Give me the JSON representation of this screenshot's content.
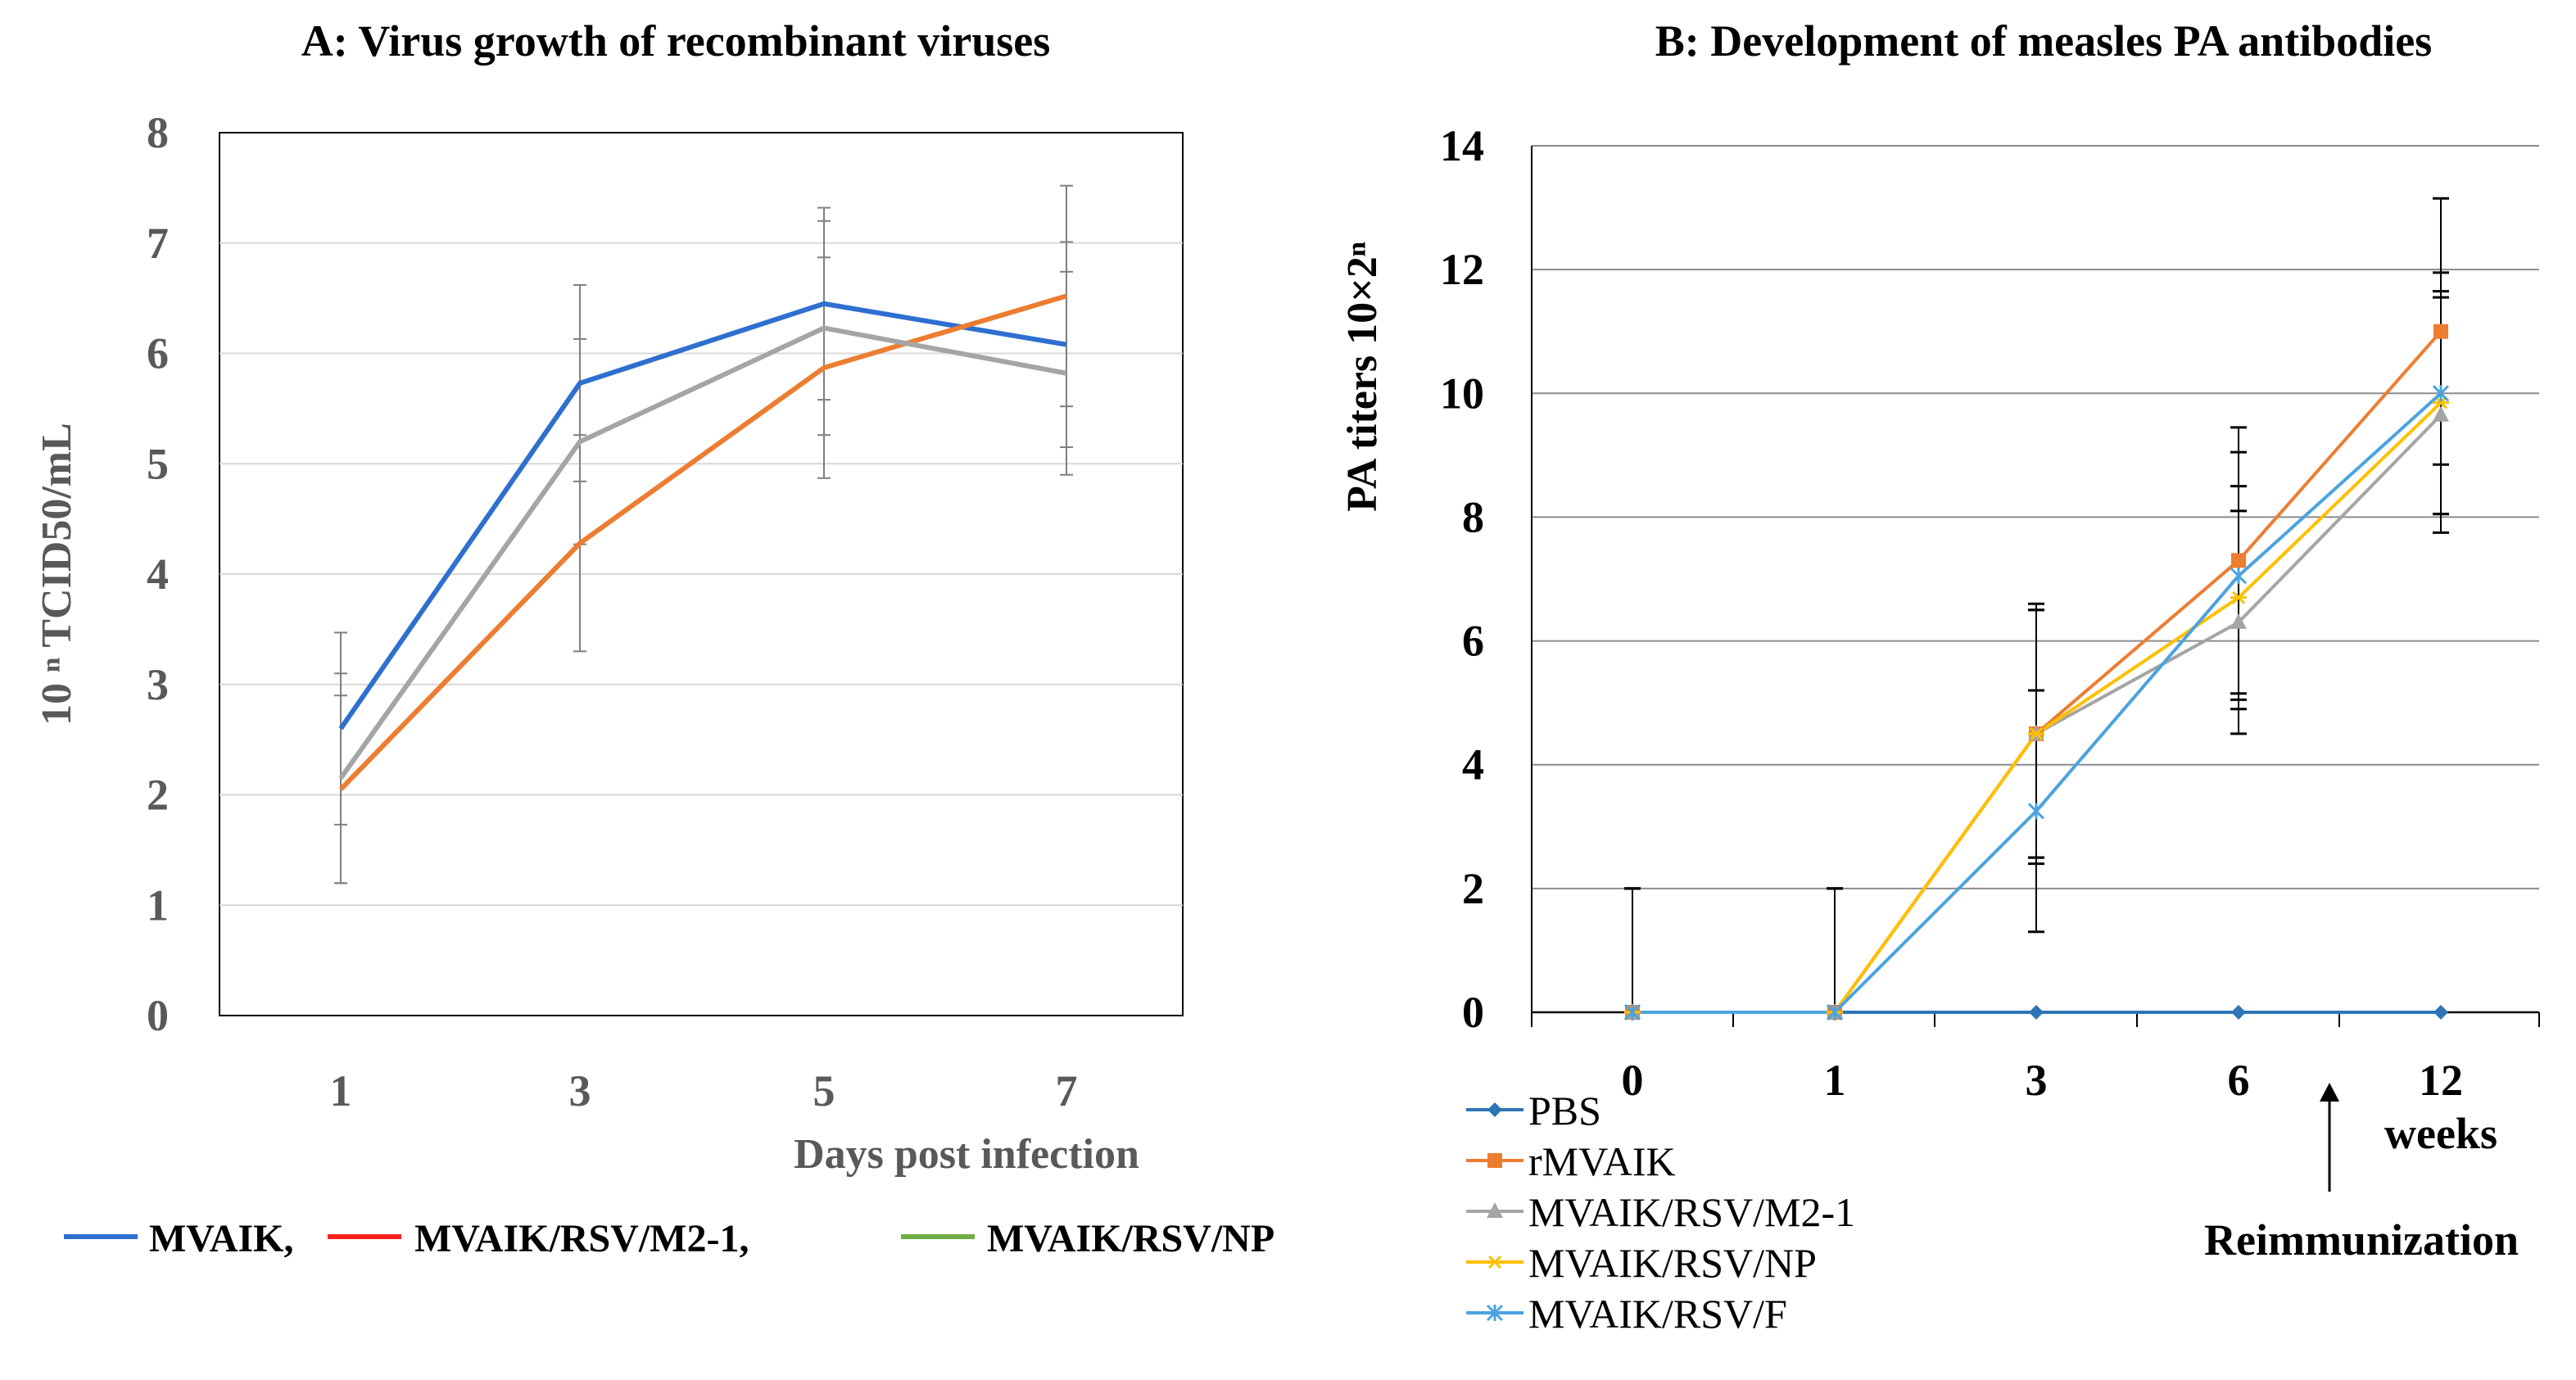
{
  "chart_data": [
    {
      "id": "A",
      "type": "line",
      "title": "A: Virus growth of recombinant viruses",
      "xlabel": "Days post infection",
      "ylabel": "10 ⁿ TCID50/mL",
      "categories": [
        "1",
        "3",
        "5",
        "7"
      ],
      "ylim": [
        0,
        8
      ],
      "yticks": [
        "0",
        "1",
        "2",
        "3",
        "4",
        "5",
        "6",
        "7",
        "8"
      ],
      "grid": true,
      "series": [
        {
          "name": "MVAIK",
          "color": "#2e6fcf",
          "values": [
            2.6,
            5.73,
            6.45,
            6.08
          ],
          "err": [
            0.87,
            0.89,
            0.87,
            0.93
          ]
        },
        {
          "name": "MVAIK/RSV/M2-1",
          "color": "#ed7d31",
          "values": [
            2.05,
            4.28,
            5.87,
            6.52
          ],
          "err": [
            0.85,
            0.98,
            1.0,
            1.0
          ]
        },
        {
          "name": "MVAIK/RSV/NP",
          "color": "#a5a5a5",
          "values": [
            2.15,
            5.2,
            6.23,
            5.82
          ],
          "err": [
            0.95,
            0.93,
            0.97,
            0.92
          ]
        }
      ],
      "legend": [
        {
          "label": "MVAIK,",
          "color": "#2e6fcf"
        },
        {
          "label": "MVAIK/RSV/M2-1,",
          "color": "#ff2020"
        },
        {
          "label": "MVAIK/RSV/NP",
          "color": "#70ad47"
        }
      ]
    },
    {
      "id": "B",
      "type": "line",
      "title": "B: Development of measles PA antibodies",
      "xlabel": "weeks",
      "ylabel": "PA titers 10×2ⁿ",
      "categories": [
        "0",
        "1",
        "3",
        "6",
        "12"
      ],
      "ylim": [
        0,
        14
      ],
      "yticks": [
        "0",
        "2",
        "4",
        "6",
        "8",
        "10",
        "12",
        "14"
      ],
      "grid": true,
      "annotation": "Reimmunization",
      "series": [
        {
          "name": "PBS",
          "color": "#2e75b6",
          "marker": "diamond",
          "values": [
            0,
            0,
            0,
            0,
            0
          ],
          "err": [
            0,
            0,
            0,
            0,
            0
          ]
        },
        {
          "name": "rMVAIK",
          "color": "#ed7d31",
          "marker": "square",
          "values": [
            0,
            0,
            4.5,
            7.3,
            11.0
          ],
          "err": [
            2.0,
            2.0,
            2.1,
            2.15,
            2.15
          ]
        },
        {
          "name": "MVAIK/RSV/M2-1",
          "color": "#a5a5a5",
          "marker": "triangle",
          "values": [
            0,
            0,
            4.5,
            6.3,
            9.65
          ],
          "err": [
            2.0,
            2.0,
            2.0,
            1.8,
            1.9
          ]
        },
        {
          "name": "MVAIK/RSV/NP",
          "color": "#ffc000",
          "marker": "star",
          "values": [
            0,
            0,
            4.5,
            6.7,
            9.85
          ],
          "err": [
            2.0,
            2.0,
            2.0,
            1.8,
            1.8
          ]
        },
        {
          "name": "MVAIK/RSV/F",
          "color": "#4aa3df",
          "marker": "x",
          "values": [
            0,
            0,
            3.25,
            7.05,
            10.0
          ],
          "err": [
            2.0,
            2.0,
            1.95,
            2.0,
            1.95
          ]
        }
      ]
    }
  ]
}
